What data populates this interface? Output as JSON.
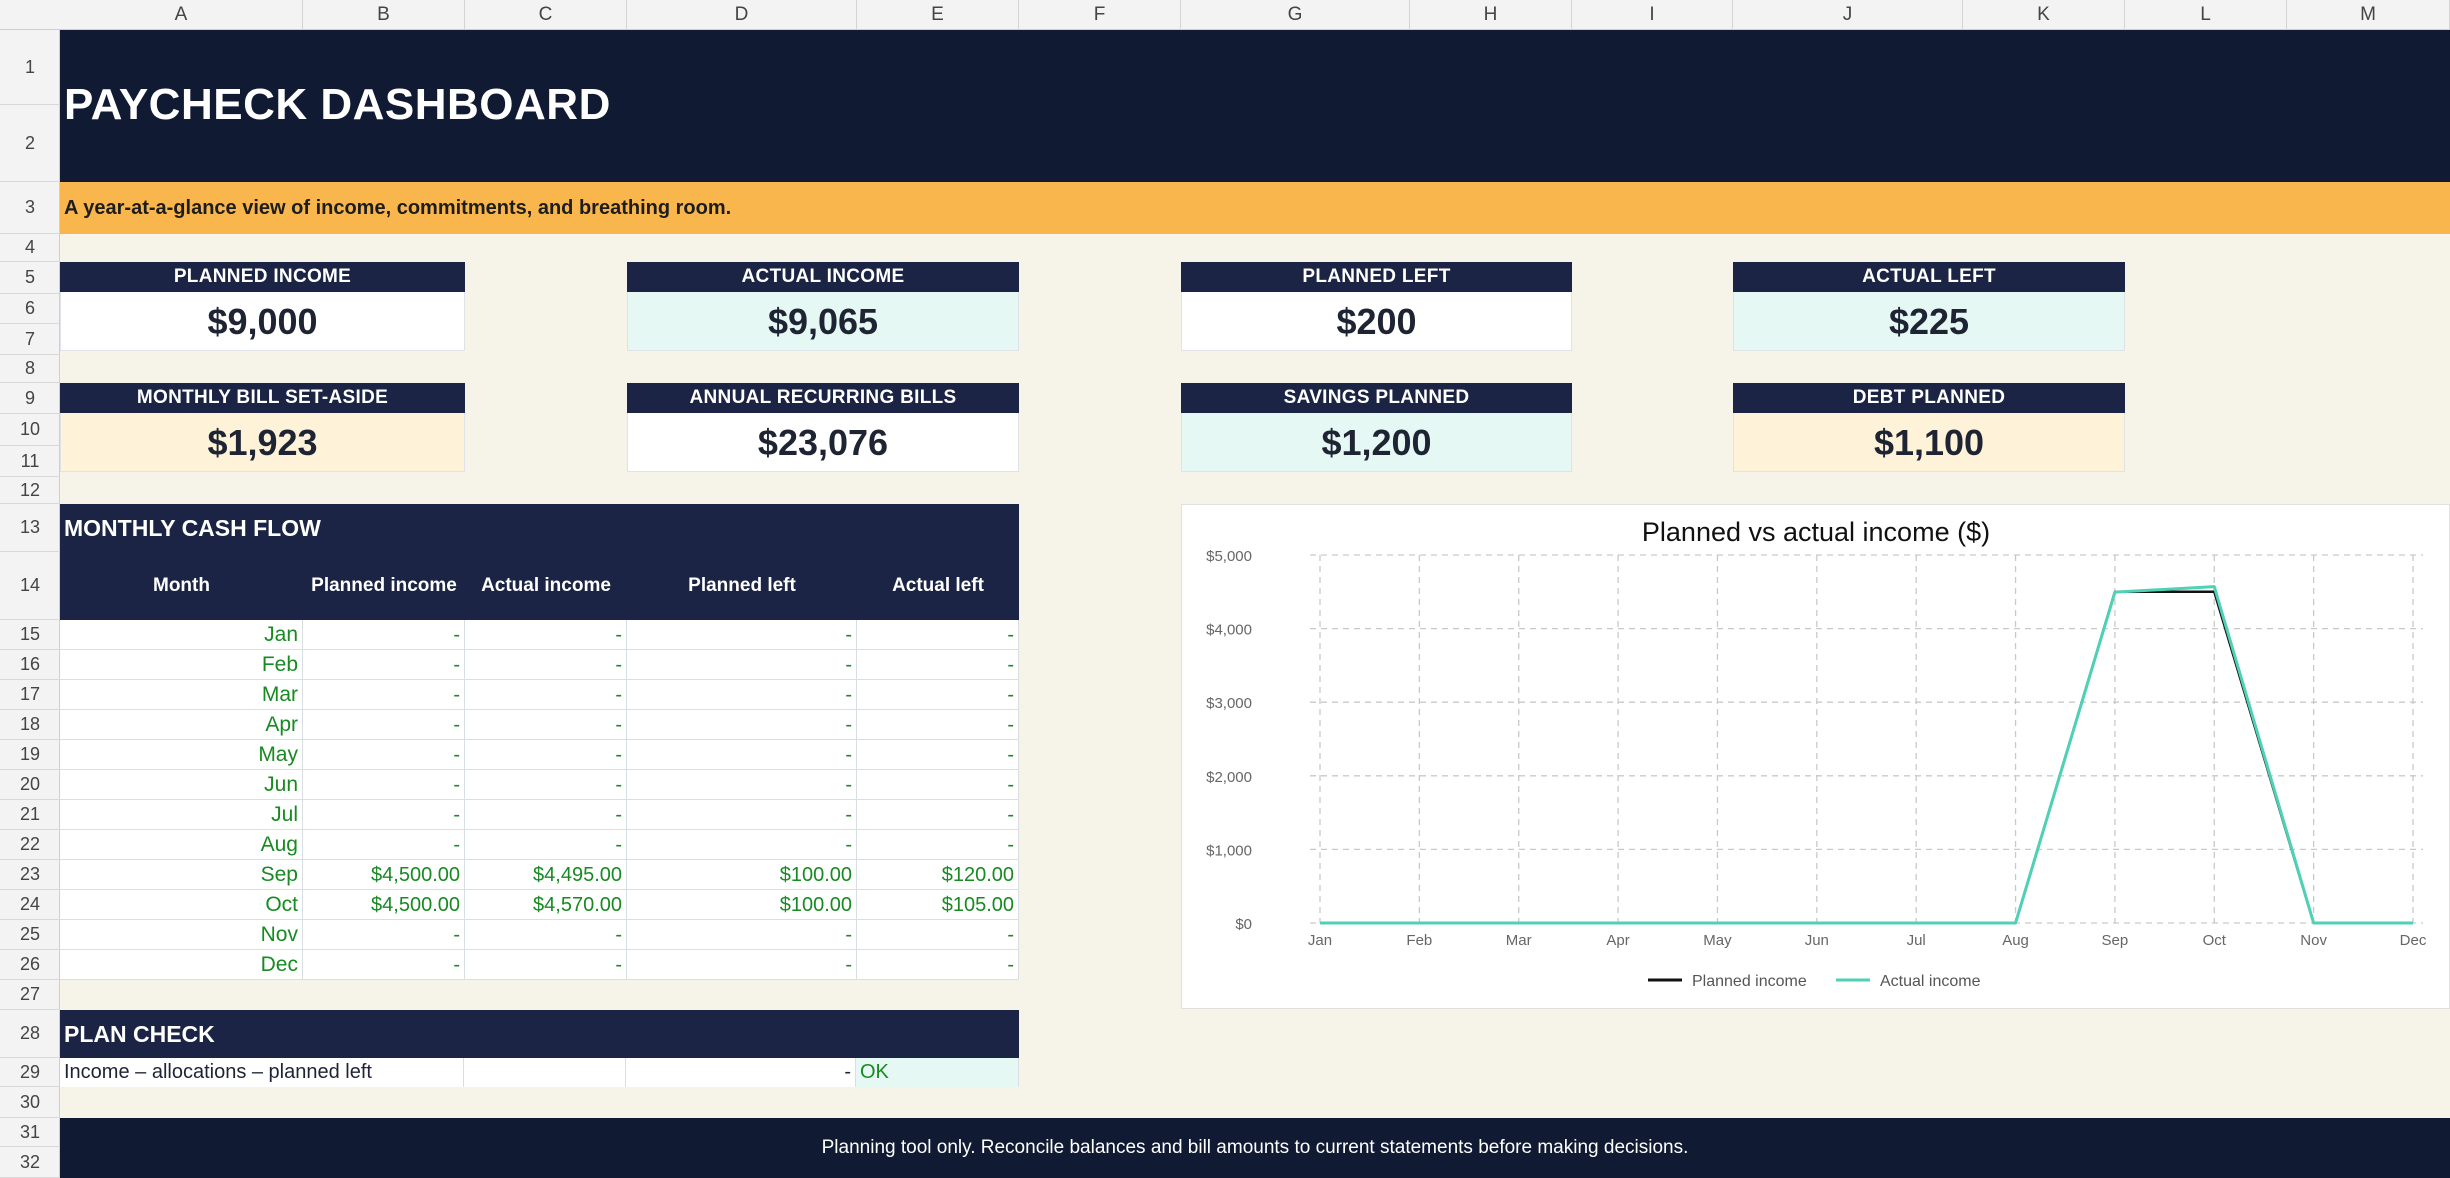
{
  "columns": [
    "A",
    "B",
    "C",
    "D",
    "E",
    "F",
    "G",
    "H",
    "I",
    "J",
    "K",
    "L",
    "M"
  ],
  "rows": [
    "1",
    "2",
    "3",
    "4",
    "5",
    "6",
    "7",
    "8",
    "9",
    "10",
    "11",
    "12",
    "13",
    "14",
    "15",
    "16",
    "17",
    "18",
    "19",
    "20",
    "21",
    "22",
    "23",
    "24",
    "25",
    "26",
    "27",
    "28",
    "29",
    "30",
    "31",
    "32"
  ],
  "title": "PAYCHECK DASHBOARD",
  "subtitle": "A year-at-a-glance view of income, commitments, and breathing room.",
  "kpis": [
    {
      "label": "PLANNED INCOME",
      "value": "$9,000",
      "tone": "#ffffff"
    },
    {
      "label": "ACTUAL INCOME",
      "value": "$9,065",
      "tone": "#e5f8f3"
    },
    {
      "label": "PLANNED LEFT",
      "value": "$200",
      "tone": "#ffffff"
    },
    {
      "label": "ACTUAL LEFT",
      "value": "$225",
      "tone": "#e5f8f3"
    },
    {
      "label": "MONTHLY BILL SET-ASIDE",
      "value": "$1,923",
      "tone": "#fef3d9"
    },
    {
      "label": "ANNUAL RECURRING BILLS",
      "value": "$23,076",
      "tone": "#ffffff"
    },
    {
      "label": "SAVINGS PLANNED",
      "value": "$1,200",
      "tone": "#e5f8f3"
    },
    {
      "label": "DEBT PLANNED",
      "value": "$1,100",
      "tone": "#fef3d9"
    }
  ],
  "cashflow": {
    "title": "MONTHLY CASH FLOW",
    "headers": [
      "Month",
      "Planned income",
      "Actual income",
      "Planned left",
      "Actual left"
    ],
    "rows": [
      [
        "Jan",
        "-",
        "-",
        "-",
        "-"
      ],
      [
        "Feb",
        "-",
        "-",
        "-",
        "-"
      ],
      [
        "Mar",
        "-",
        "-",
        "-",
        "-"
      ],
      [
        "Apr",
        "-",
        "-",
        "-",
        "-"
      ],
      [
        "May",
        "-",
        "-",
        "-",
        "-"
      ],
      [
        "Jun",
        "-",
        "-",
        "-",
        "-"
      ],
      [
        "Jul",
        "-",
        "-",
        "-",
        "-"
      ],
      [
        "Aug",
        "-",
        "-",
        "-",
        "-"
      ],
      [
        "Sep",
        "$4,500.00",
        "$4,495.00",
        "$100.00",
        "$120.00"
      ],
      [
        "Oct",
        "$4,500.00",
        "$4,570.00",
        "$100.00",
        "$105.00"
      ],
      [
        "Nov",
        "-",
        "-",
        "-",
        "-"
      ],
      [
        "Dec",
        "-",
        "-",
        "-",
        "-"
      ]
    ]
  },
  "plan_check": {
    "title": "PLAN CHECK",
    "label": "Income – allocations – planned left",
    "value": "-",
    "status": "OK"
  },
  "footer": "Planning tool only. Reconcile balances and bill amounts to current statements before making decisions.",
  "colors": {
    "navy": "#111a33",
    "header_navy": "#1b2444",
    "amber": "#f9b64d",
    "table_text_green": "#178a22",
    "series_planned": "#111111",
    "series_actual": "#4fd1b5"
  },
  "chart_data": {
    "type": "line",
    "title": "Planned vs actual income ($)",
    "categories": [
      "Jan",
      "Feb",
      "Mar",
      "Apr",
      "May",
      "Jun",
      "Jul",
      "Aug",
      "Sep",
      "Oct",
      "Nov",
      "Dec"
    ],
    "series": [
      {
        "name": "Planned income",
        "color": "#111111",
        "values": [
          0,
          0,
          0,
          0,
          0,
          0,
          0,
          0,
          4500,
          4500,
          0,
          0
        ]
      },
      {
        "name": "Actual income",
        "color": "#4fd1b5",
        "values": [
          0,
          0,
          0,
          0,
          0,
          0,
          0,
          0,
          4495,
          4570,
          0,
          0
        ]
      }
    ],
    "yticks": [
      "$0",
      "$1,000",
      "$2,000",
      "$3,000",
      "$4,000",
      "$5,000"
    ],
    "ylim": [
      0,
      5000
    ],
    "grid": true,
    "legend": "bottom"
  }
}
